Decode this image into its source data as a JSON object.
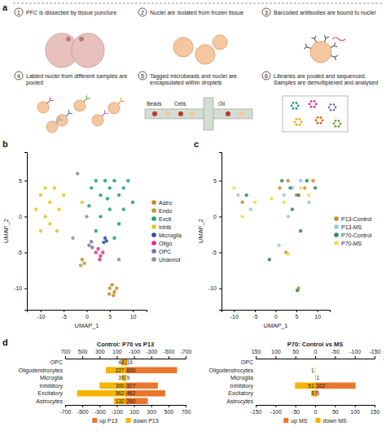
{
  "panel_labels": [
    "a",
    "b",
    "c",
    "d"
  ],
  "schematic": {
    "steps": [
      {
        "number": "1",
        "text": "PFC is dissected by tissue puncture"
      },
      {
        "number": "2",
        "text": "Nuclei are isolated from frozen tissue"
      },
      {
        "number": "3",
        "text": "Barcoded antibodies are bound to nuclei"
      },
      {
        "number": "4",
        "text": "Labled nuclei from different samples are pooled"
      },
      {
        "number": "5",
        "text": "Tagged microbeads and nuclei are encapsulated within droplets"
      },
      {
        "number": "6",
        "text": "Libraries are pooled and sequenced. Samples are demultiplexed and analysed"
      }
    ],
    "droplet_labels": [
      "Beads",
      "Cells",
      "Oil"
    ]
  },
  "chart_data": [
    {
      "type": "scatter",
      "x_label": "UMAP_1",
      "y_label": "UMAP_2",
      "xlim": [
        -13,
        13
      ],
      "ylim": [
        -13,
        9
      ],
      "xticks": [
        -10,
        -5,
        0,
        5,
        10
      ],
      "yticks": [
        -10,
        -5,
        0,
        5
      ],
      "legend": "right",
      "marker": "circle",
      "series": [
        {
          "name": "Astro",
          "color": "#c8831a",
          "x": [
            5,
            5.5,
            6,
            6.5,
            5.8,
            4.9
          ],
          "values": [
            -10,
            -9.5,
            -10.5,
            -10,
            -11,
            -10.8
          ]
        },
        {
          "name": "Endo",
          "color": "#b59a2e",
          "x": [
            -1,
            -0.5,
            -1.3
          ],
          "values": [
            -6,
            -6.5,
            -6.8
          ]
        },
        {
          "name": "Excit",
          "color": "#1b9e77",
          "x": [
            1,
            2,
            3,
            4,
            5,
            6,
            7,
            8,
            9,
            3,
            5,
            7,
            8,
            10,
            2,
            6,
            0.5,
            4.5
          ],
          "values": [
            4,
            5,
            3,
            5,
            4,
            5,
            3,
            4,
            5,
            0,
            1,
            -1,
            1,
            2,
            -2,
            -3,
            1.5,
            2.5
          ]
        },
        {
          "name": "Inhib",
          "color": "#e8c21a",
          "x": [
            -10,
            -9,
            -8,
            -9,
            -7,
            -6,
            -5,
            -8,
            -10,
            -1,
            -11,
            -6.5
          ],
          "values": [
            3,
            4,
            2,
            0,
            4,
            1,
            3,
            -1,
            -2,
            2,
            1,
            -2
          ]
        },
        {
          "name": "Microglia",
          "color": "#2b4c9b",
          "x": [
            4,
            4.3,
            3.7
          ],
          "values": [
            -3,
            -3.4,
            -3.6
          ]
        },
        {
          "name": "Oligo",
          "color": "#e7298a",
          "x": [
            2,
            2.5,
            3,
            3.5,
            2.8
          ],
          "values": [
            -5,
            -4.5,
            -5.5,
            -5,
            -6
          ]
        },
        {
          "name": "OPC",
          "color": "#7570b3",
          "x": [
            0.5,
            1,
            1.2
          ],
          "values": [
            -4,
            -3.5,
            -4.3
          ]
        },
        {
          "name": "Unannot",
          "color": "#8c8c8c",
          "x": [
            -3,
            0,
            -2,
            7
          ],
          "values": [
            -3,
            0,
            6,
            -6
          ]
        }
      ]
    },
    {
      "type": "scatter",
      "x_label": "UMAP_1",
      "y_label": "UMAP_2",
      "xlim": [
        -13,
        13
      ],
      "ylim": [
        -13,
        9
      ],
      "xticks": [
        -10,
        -5,
        0,
        5,
        10
      ],
      "yticks": [
        -10,
        -5,
        0,
        5
      ],
      "legend": "right",
      "marker": "circle",
      "series": [
        {
          "name": "P13-Control",
          "color": "#c98a2b",
          "x": [
            1,
            3,
            5,
            7,
            9,
            -8,
            5.5,
            2.5
          ],
          "values": [
            4,
            5,
            3,
            4,
            5,
            2,
            -10,
            -5
          ]
        },
        {
          "name": "P13-MS",
          "color": "#8ecae6",
          "x": [
            2,
            4,
            6,
            8,
            -9,
            -6,
            3,
            0.8
          ],
          "values": [
            3,
            4,
            5,
            2,
            3,
            1,
            0,
            -4
          ]
        },
        {
          "name": "P70-Control",
          "color": "#2e8b57",
          "x": [
            1.5,
            3.5,
            5.5,
            7.5,
            9.5,
            4,
            6,
            -7,
            -1.5,
            5.2
          ],
          "values": [
            5,
            4,
            3,
            5,
            4,
            1,
            -2,
            3,
            -6,
            -10.3
          ]
        },
        {
          "name": "P70-MS",
          "color": "#f0dc4a",
          "x": [
            -10,
            -8,
            -5,
            2,
            6,
            8,
            3,
            -1
          ],
          "values": [
            4,
            0,
            2,
            2,
            4,
            3,
            -5.2,
            2.5
          ]
        }
      ]
    },
    {
      "type": "bar",
      "orientation": "horizontal",
      "title": "Control: P70 vs P13",
      "data_labels": true,
      "legend": "bottom",
      "categories": [
        "OPC",
        "Oligodendrocytes",
        "Microglia",
        "Inhibitory",
        "Excitatory",
        "Astrocytes"
      ],
      "xlim": [
        -700,
        700
      ],
      "xticks": [
        -700,
        -500,
        -300,
        -100,
        100,
        300,
        500,
        700
      ],
      "x2lim": [
        700,
        -700
      ],
      "x2ticks": [
        700,
        500,
        300,
        100,
        -100,
        -300,
        -500,
        -700
      ],
      "series": [
        {
          "name": "up P13",
          "color": "#e9762b",
          "values": [
            19,
            600,
            9,
            377,
            462,
            260
          ]
        },
        {
          "name": "down P13",
          "color": "#f6b400",
          "axis": "x2",
          "values": [
            48,
            227,
            39,
            300,
            562,
            132
          ]
        }
      ]
    },
    {
      "type": "bar",
      "orientation": "horizontal",
      "title": "P70: Control vs MS",
      "data_labels": true,
      "legend": "bottom",
      "categories": [
        "OPC",
        "Oligodendrocytes",
        "Microglia",
        "Inhibitory",
        "Excitatory",
        "Astrocytes"
      ],
      "xlim": [
        -150,
        150
      ],
      "xticks": [
        -150,
        -100,
        -50,
        0,
        50,
        100,
        150
      ],
      "x2lim": [
        150,
        -150
      ],
      "x2ticks": [
        150,
        100,
        50,
        0,
        -50,
        -100,
        -150
      ],
      "series": [
        {
          "name": "up MS",
          "color": "#e9762b",
          "values": [
            null,
            null,
            1,
            102,
            5,
            null
          ]
        },
        {
          "name": "down MS",
          "color": "#f6b400",
          "axis": "x2",
          "values": [
            null,
            1,
            null,
            51,
            8,
            null
          ]
        }
      ]
    }
  ]
}
